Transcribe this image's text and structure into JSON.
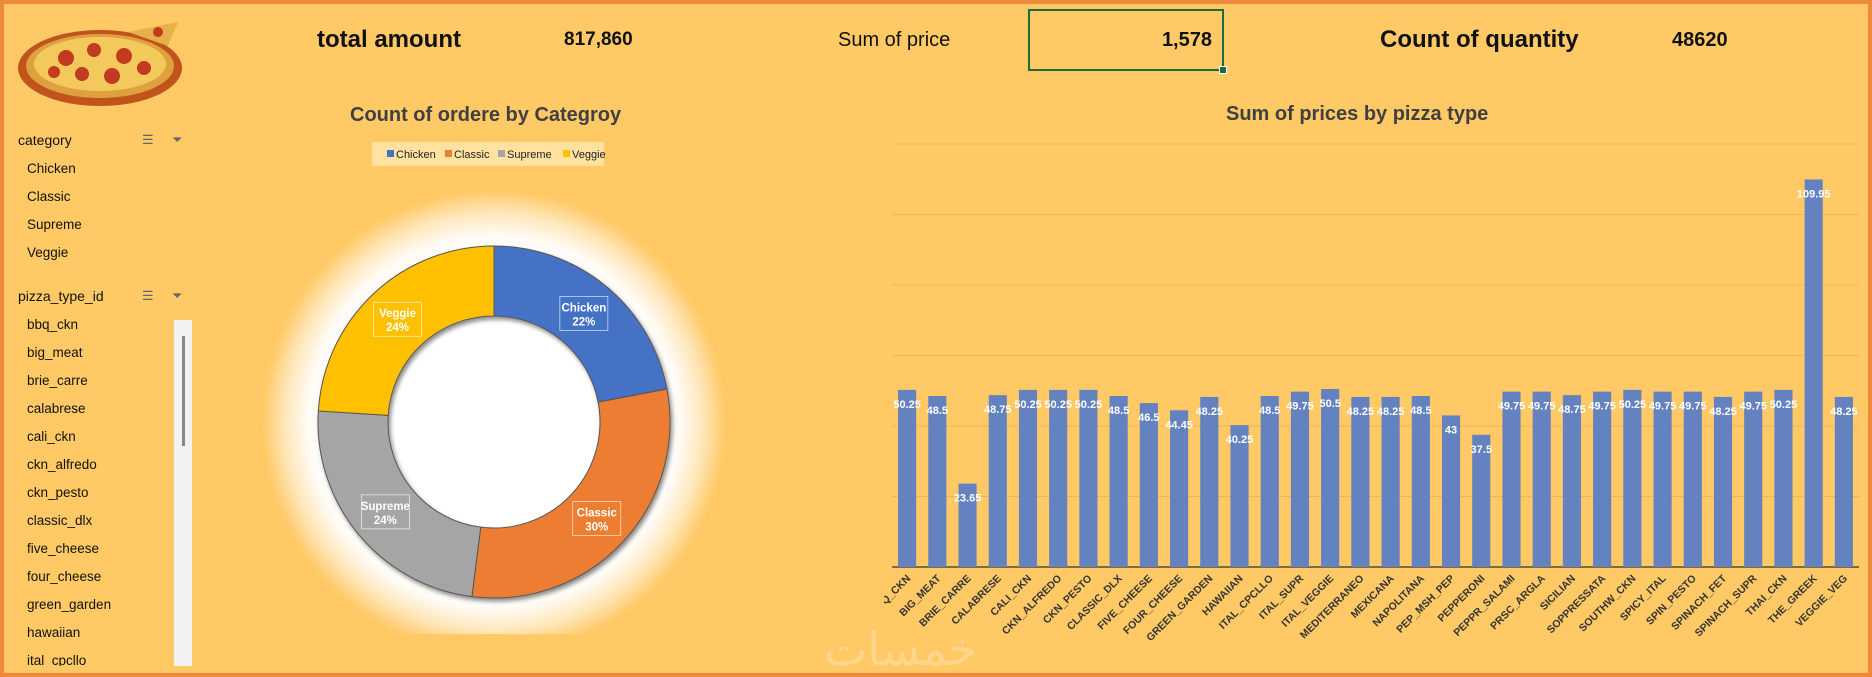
{
  "kpis": {
    "total_amount_label": "total amount",
    "total_amount_value": "817,860",
    "sum_price_label": "Sum of price",
    "sum_price_value": "1,578",
    "count_qty_label": "Count of quantity",
    "count_qty_value": "48620"
  },
  "slicers": {
    "category": {
      "title": "category",
      "items": [
        "Chicken",
        "Classic",
        "Supreme",
        "Veggie"
      ]
    },
    "pizza_type": {
      "title": "pizza_type_id",
      "items": [
        "bbq_ckn",
        "big_meat",
        "brie_carre",
        "calabrese",
        "cali_ckn",
        "ckn_alfredo",
        "ckn_pesto",
        "classic_dlx",
        "five_cheese",
        "four_cheese",
        "green_garden",
        "hawaiian",
        "ital_cpcllo"
      ]
    }
  },
  "icons": {
    "multiselect": "multi-select-icon",
    "clearfilter": "clear-filter-icon",
    "logo": "pizza-image"
  },
  "colors": {
    "background": "#ffc966",
    "border": "#ef8a3a",
    "chicken": "#4472c4",
    "classic": "#ed7d31",
    "supreme": "#a5a5a5",
    "veggie": "#ffc000",
    "bar": "#6482c0"
  },
  "chart_data": [
    {
      "type": "pie",
      "title": "Count of ordere by Categroy",
      "legend_position": "top",
      "categories": [
        "Chicken",
        "Classic",
        "Supreme",
        "Veggie"
      ],
      "values": [
        22,
        30,
        24,
        24
      ],
      "labels": [
        "22%",
        "30%",
        "24%",
        "24%"
      ]
    },
    {
      "type": "bar",
      "title": "Sum of prices by pizza type",
      "xlabel": "",
      "ylabel": "",
      "ylim": [
        0,
        120
      ],
      "grid": true,
      "categories": [
        "BBQ_CKN",
        "BIG_MEAT",
        "BRIE_CARRE",
        "CALABRESE",
        "CALI_CKN",
        "CKN_ALFREDO",
        "CKN_PESTO",
        "CLASSIC_DLX",
        "FIVE_CHEESE",
        "FOUR_CHEESE",
        "GREEN_GARDEN",
        "HAWAIIAN",
        "ITAL_CPCLLO",
        "ITAL_SUPR",
        "ITAL_VEGGIE",
        "MEDITERRANEO",
        "MEXICANA",
        "NAPOLITANA",
        "PEP_MSH_PEP",
        "PEPPERONI",
        "PEPPR_SALAMI",
        "PRSC_ARGLA",
        "SICILIAN",
        "SOPPRESSATA",
        "SOUTHW_CKN",
        "SPICY_ITAL",
        "SPIN_PESTO",
        "SPINACH_FET",
        "SPINACH_SUPR",
        "THAI_CKN",
        "THE_GREEK",
        "VEGGIE_VEG"
      ],
      "values": [
        50.25,
        48.5,
        23.65,
        48.75,
        50.25,
        50.25,
        50.25,
        48.5,
        46.5,
        44.45,
        48.25,
        40.25,
        48.5,
        49.75,
        50.5,
        48.25,
        48.25,
        48.5,
        43,
        37.5,
        49.75,
        49.75,
        48.75,
        49.75,
        50.25,
        49.75,
        49.75,
        48.25,
        49.75,
        50.25,
        109.95,
        48.25
      ],
      "value_labels": [
        "50.25",
        "48.5",
        "23.65",
        "48.75",
        "50.25",
        "50.25",
        "50.25",
        "48.5",
        "46.5",
        "44.45",
        "48.25",
        "40.25",
        "48.5",
        "49.75",
        "50.5",
        "48.25",
        "48.25",
        "48.5",
        "43",
        "37.5",
        "49.75",
        "49.75",
        "48.75",
        "49.75",
        "50.25",
        "49.75",
        "49.75",
        "48.25",
        "49.75",
        "50.25",
        "109.95",
        "48.25"
      ]
    }
  ]
}
